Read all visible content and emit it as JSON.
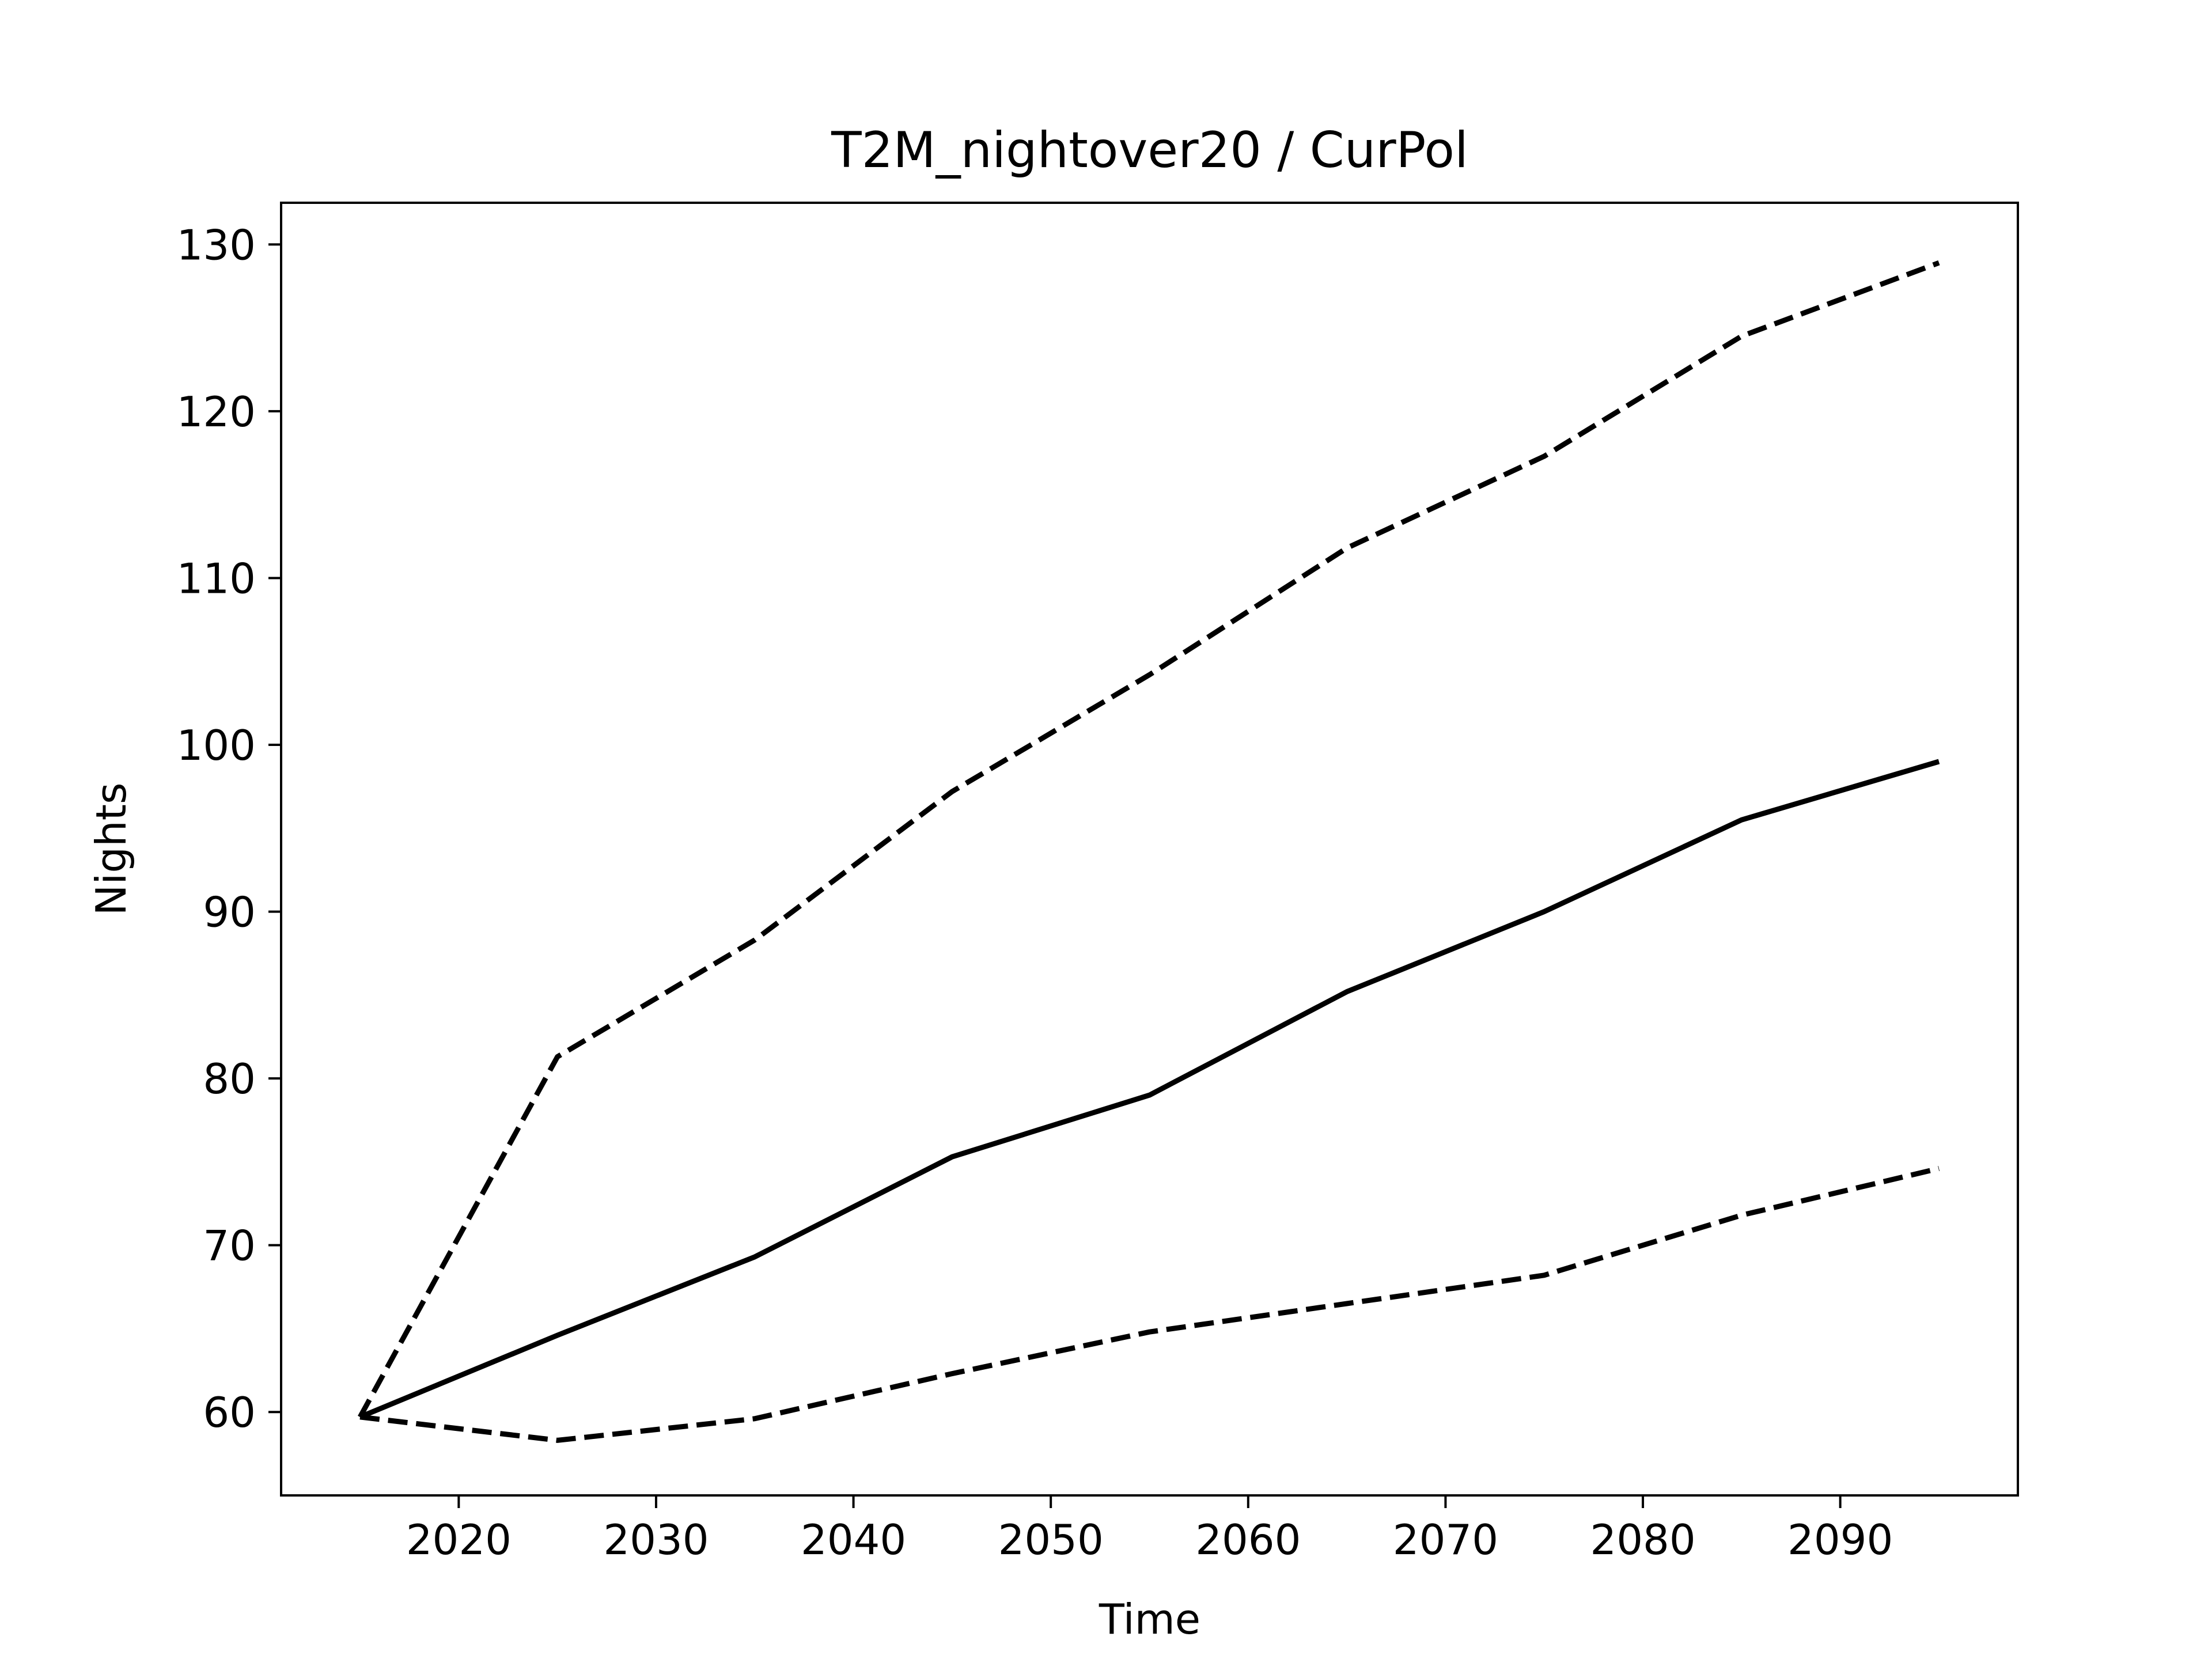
{
  "chart_data": {
    "type": "line",
    "title": "T2M_nightover20 / CurPol",
    "xlabel": "Time",
    "ylabel": "Nights",
    "xlim": [
      2011,
      2099
    ],
    "ylim": [
      55,
      132.5
    ],
    "xticks": [
      2020,
      2030,
      2040,
      2050,
      2060,
      2070,
      2080,
      2090
    ],
    "yticks": [
      60,
      70,
      80,
      90,
      100,
      110,
      120,
      130
    ],
    "grid": false,
    "legend": "none",
    "x": [
      2015,
      2025,
      2035,
      2045,
      2055,
      2065,
      2075,
      2085,
      2095
    ],
    "series": [
      {
        "style": "solid",
        "color": "#000000",
        "values": [
          59.7,
          64.6,
          69.3,
          75.3,
          79.0,
          85.2,
          90.0,
          95.5,
          99.0
        ]
      },
      {
        "style": "dashed",
        "color": "#000000",
        "values": [
          59.7,
          81.3,
          88.3,
          97.2,
          104.2,
          111.8,
          117.3,
          124.5,
          128.9
        ]
      },
      {
        "style": "dashed",
        "color": "#000000",
        "values": [
          59.7,
          58.3,
          59.6,
          62.3,
          64.8,
          66.5,
          68.2,
          71.8,
          74.6
        ]
      }
    ]
  }
}
